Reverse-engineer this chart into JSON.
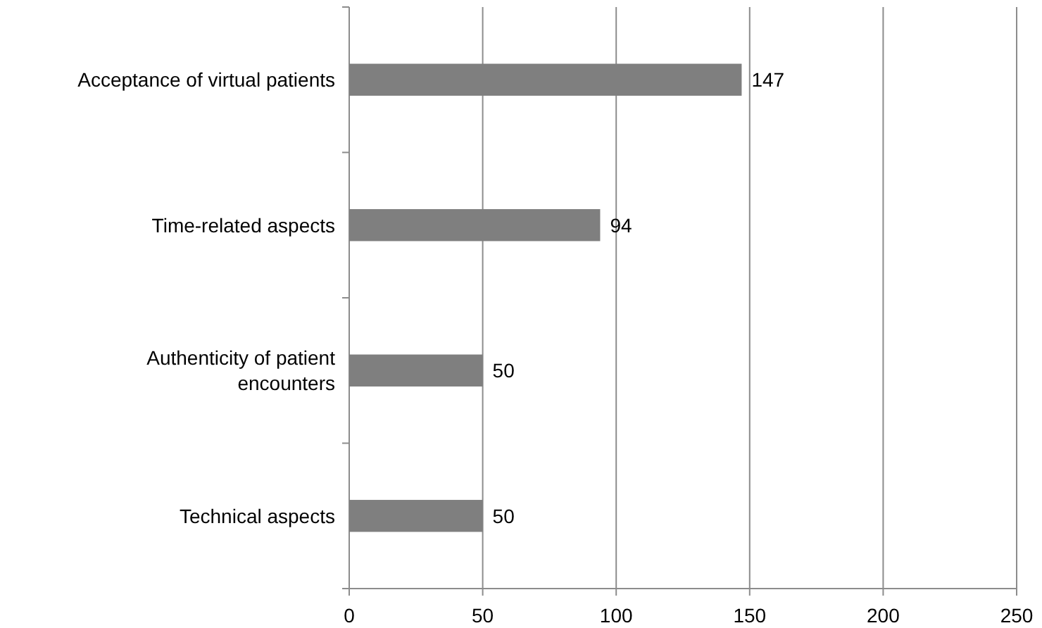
{
  "chart_data": {
    "type": "bar",
    "orientation": "horizontal",
    "categories": [
      "Acceptance of virtual patients",
      "Time-related aspects",
      "Authenticity of patient encounters",
      "Technical aspects"
    ],
    "values": [
      147,
      94,
      50,
      50
    ],
    "color": "#7f7f7f",
    "xlim": [
      0,
      250
    ],
    "xticks": [
      0,
      50,
      100,
      150,
      200,
      250
    ],
    "grid": "x",
    "data_labels": true
  }
}
